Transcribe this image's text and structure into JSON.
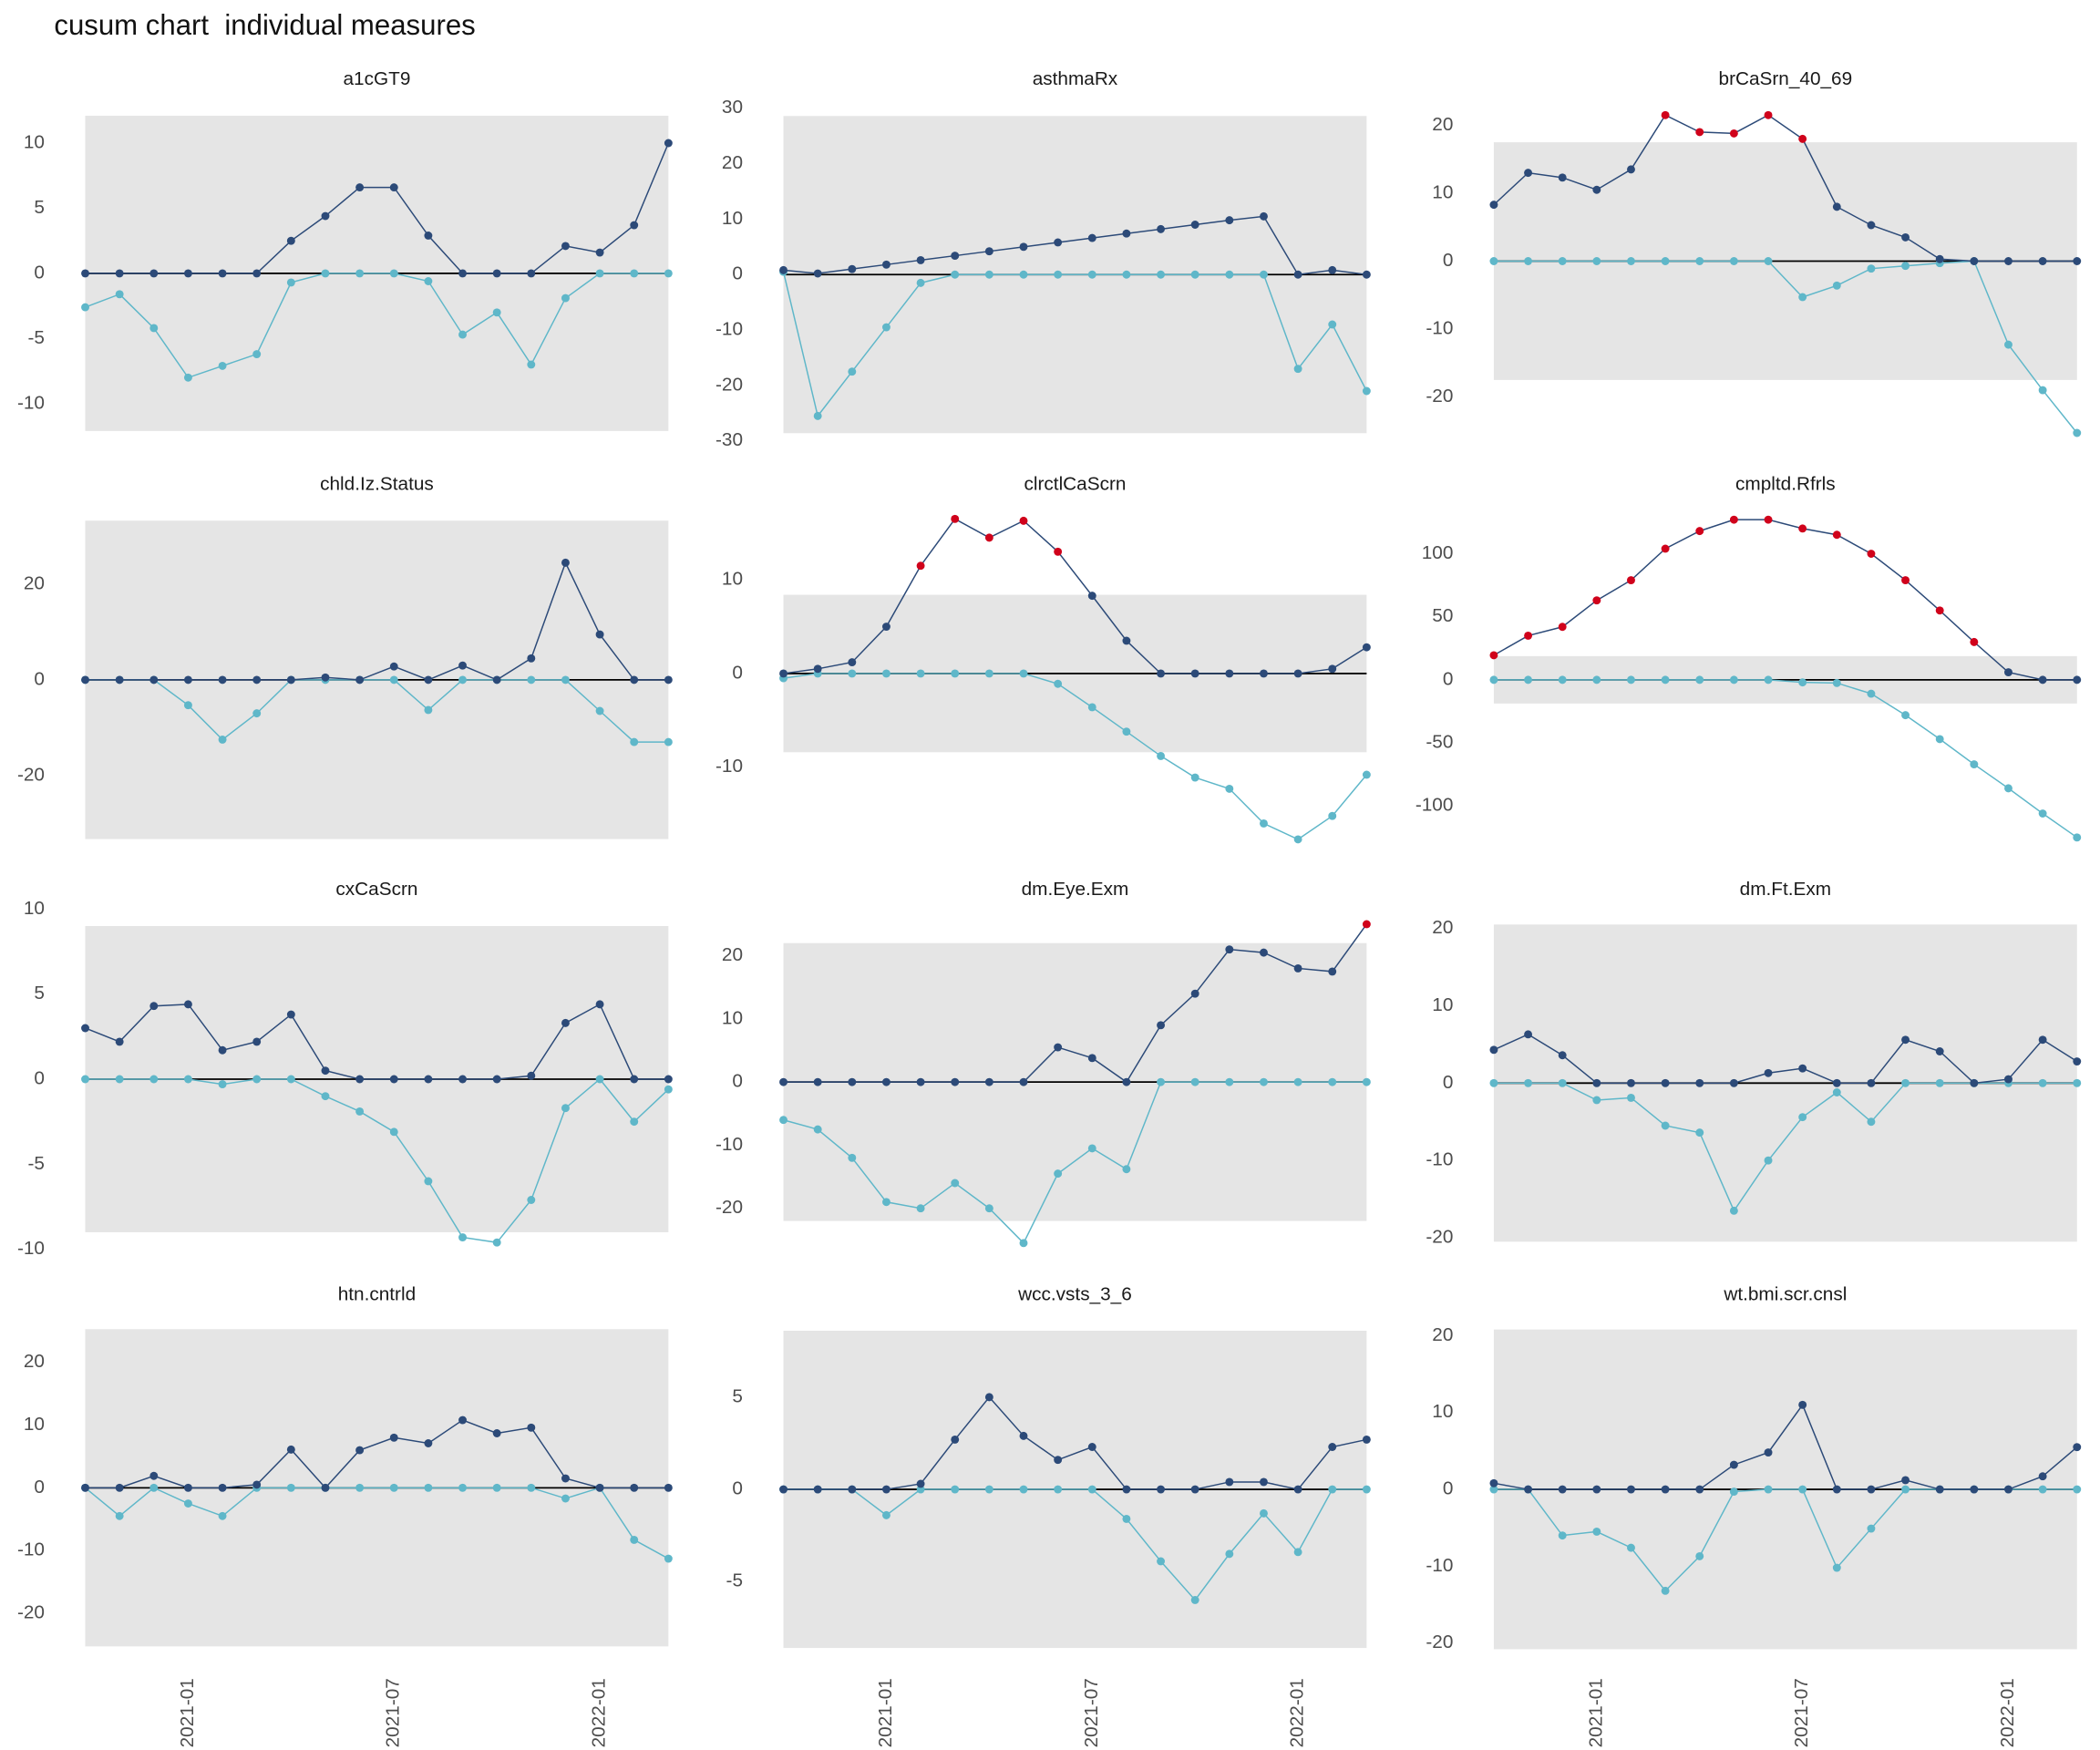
{
  "title": "cusum chart  individual measures",
  "highlight_color": "#d0021b",
  "chart_data": [
    {
      "type": "line",
      "title": "a1cGT9",
      "ylim": [
        -13.5,
        13.4
      ],
      "yticks": [
        -10,
        -5,
        0,
        5,
        10
      ],
      "control_limit": 12.1,
      "series": [
        {
          "color": "#2c4a78",
          "values": [
            0,
            0,
            0,
            0,
            0,
            0,
            2.5,
            4.4,
            6.6,
            6.6,
            2.9,
            0,
            0,
            0,
            2.1,
            1.6,
            3.7,
            10
          ]
        },
        {
          "color": "#5fb7c9",
          "values": [
            -2.6,
            -1.6,
            -4.2,
            -8,
            -7.1,
            -6.2,
            -0.7,
            0,
            0,
            0,
            -0.6,
            -4.7,
            -3,
            -7,
            -1.9,
            0,
            0,
            0
          ]
        }
      ]
    },
    {
      "type": "line",
      "title": "asthmaRx",
      "ylim": [
        -31.5,
        31.7
      ],
      "yticks": [
        -30,
        -20,
        -10,
        0,
        10,
        20,
        30
      ],
      "control_limit": 28.6,
      "series": [
        {
          "color": "#2c4a78",
          "values": [
            0.8,
            0.2,
            1,
            1.8,
            2.6,
            3.4,
            4.2,
            5,
            5.8,
            6.6,
            7.4,
            8.2,
            9,
            9.8,
            10.5,
            0,
            0.8,
            0
          ]
        },
        {
          "color": "#5fb7c9",
          "values": [
            0.5,
            -25.5,
            -17.5,
            -9.5,
            -1.5,
            0,
            0,
            0,
            0,
            0,
            0,
            0,
            0,
            0,
            0,
            -17,
            -9,
            -21
          ]
        }
      ]
    },
    {
      "type": "line",
      "title": "brCaSrn_40_69",
      "ylim": [
        -27.7,
        23.9
      ],
      "yticks": [
        -20,
        -10,
        0,
        10,
        20
      ],
      "control_limit": 17.5,
      "series": [
        {
          "color": "#2c4a78",
          "values": [
            8.3,
            13,
            12.3,
            10.5,
            13.5,
            21.5,
            19,
            18.8,
            21.5,
            18,
            8,
            5.3,
            3.5,
            0.3,
            0,
            0,
            0,
            0
          ]
        },
        {
          "color": "#5fb7c9",
          "values": [
            0,
            0,
            0,
            0,
            0,
            0,
            0,
            0,
            0,
            -5.3,
            -3.6,
            -1.1,
            -0.7,
            -0.3,
            0,
            -12.3,
            -19,
            -25.3
          ]
        }
      ]
    },
    {
      "type": "line",
      "title": "chld.Iz.Status",
      "ylim": [
        -36.5,
        36.8
      ],
      "yticks": [
        -20,
        0,
        20
      ],
      "control_limit": 33.3,
      "series": [
        {
          "color": "#2c4a78",
          "values": [
            0,
            0,
            0,
            0,
            0,
            0,
            0,
            0.5,
            0,
            2.8,
            0,
            3,
            0,
            4.5,
            24.5,
            9.5,
            0,
            0
          ]
        },
        {
          "color": "#5fb7c9",
          "values": [
            0,
            0,
            0,
            -5.3,
            -12.5,
            -7,
            0,
            0,
            0,
            0,
            -6.3,
            0,
            0,
            0,
            0,
            -6.5,
            -13,
            -13
          ]
        }
      ]
    },
    {
      "type": "line",
      "title": "clrctlCaScrn",
      "ylim": [
        -19.3,
        18.1
      ],
      "yticks": [
        -10,
        0,
        10
      ],
      "control_limit": 8.4,
      "series": [
        {
          "color": "#2c4a78",
          "values": [
            0,
            0.5,
            1.2,
            5,
            11.5,
            16.5,
            14.5,
            16.3,
            13,
            8.3,
            3.5,
            0,
            0,
            0,
            0,
            0,
            0.5,
            2.8
          ]
        },
        {
          "color": "#5fb7c9",
          "values": [
            -0.5,
            0,
            0,
            0,
            0,
            0,
            0,
            0,
            -1.1,
            -3.6,
            -6.2,
            -8.8,
            -11.1,
            -12.3,
            -16,
            -17.7,
            -15.2,
            -10.8
          ]
        }
      ]
    },
    {
      "type": "line",
      "title": "cmpltd.Rfrls",
      "ylim": [
        -138.4,
        139.5
      ],
      "yticks": [
        -100,
        -50,
        0,
        50,
        100
      ],
      "control_limit": 18.8,
      "series": [
        {
          "color": "#2c4a78",
          "values": [
            19.5,
            35,
            42,
            63,
            79,
            104,
            118,
            127,
            127,
            120,
            115,
            100,
            79,
            55,
            30,
            6,
            0,
            0
          ]
        },
        {
          "color": "#5fb7c9",
          "values": [
            0,
            0,
            0,
            0,
            0,
            0,
            0,
            0,
            0,
            -2,
            -2.5,
            -11,
            -28,
            -47,
            -67,
            -86,
            -106,
            -125
          ]
        }
      ]
    },
    {
      "type": "line",
      "title": "cxCaScrn",
      "ylim": [
        -10.6,
        10.0
      ],
      "yticks": [
        -10,
        -5,
        0,
        5,
        10
      ],
      "control_limit": 9,
      "series": [
        {
          "color": "#2c4a78",
          "values": [
            3,
            2.2,
            4.3,
            4.4,
            1.7,
            2.2,
            3.8,
            0.5,
            0,
            0,
            0,
            0,
            0,
            0.2,
            3.3,
            4.4,
            0,
            0
          ]
        },
        {
          "color": "#5fb7c9",
          "values": [
            0,
            0,
            0,
            0,
            -0.3,
            0,
            0,
            -1,
            -1.9,
            -3.1,
            -6,
            -9.3,
            -9.6,
            -7.1,
            -1.7,
            0,
            -2.5,
            -0.6
          ]
        }
      ]
    },
    {
      "type": "line",
      "title": "dm.Eye.Exm",
      "ylim": [
        -28.1,
        27.4
      ],
      "yticks": [
        -20,
        -10,
        0,
        10,
        20
      ],
      "control_limit": 22,
      "series": [
        {
          "color": "#2c4a78",
          "values": [
            0,
            0,
            0,
            0,
            0,
            0,
            0,
            0,
            5.5,
            3.8,
            0,
            9,
            14,
            21,
            20.5,
            18,
            17.5,
            25
          ]
        },
        {
          "color": "#5fb7c9",
          "values": [
            -6,
            -7.5,
            -12,
            -19,
            -20,
            -16,
            -20,
            -25.5,
            -14.5,
            -10.5,
            -13.8,
            0,
            0,
            0,
            0,
            0,
            0,
            0
          ]
        }
      ]
    },
    {
      "type": "line",
      "title": "dm.Ft.Exm",
      "ylim": [
        -22.8,
        22.5
      ],
      "yticks": [
        -20,
        -10,
        0,
        10,
        20
      ],
      "control_limit": 20.5,
      "series": [
        {
          "color": "#2c4a78",
          "values": [
            4.3,
            6.3,
            3.6,
            0,
            0,
            0,
            0,
            0,
            1.3,
            1.9,
            0,
            0,
            5.6,
            4.1,
            0,
            0.5,
            5.6,
            2.8
          ]
        },
        {
          "color": "#5fb7c9",
          "values": [
            0,
            0,
            0,
            -2.2,
            -1.9,
            -5.5,
            -6.4,
            -16.5,
            -10,
            -4.4,
            -1.2,
            -5,
            0,
            0,
            0,
            0,
            0,
            0
          ]
        }
      ]
    },
    {
      "type": "line",
      "title": "htn.cntrld",
      "ylim": [
        -28.2,
        27.7
      ],
      "yticks": [
        -20,
        -10,
        0,
        10,
        20
      ],
      "control_limit": 25.3,
      "categories": [
        null,
        null,
        null,
        "2021-01",
        null,
        null,
        null,
        null,
        null,
        "2021-07",
        null,
        null,
        null,
        null,
        null,
        "2022-01",
        null,
        null
      ],
      "series": [
        {
          "color": "#2c4a78",
          "values": [
            0,
            0,
            1.9,
            0,
            0,
            0.5,
            6.1,
            0,
            6,
            8,
            7.1,
            10.8,
            8.7,
            9.6,
            1.5,
            0,
            0,
            0
          ]
        },
        {
          "color": "#5fb7c9",
          "values": [
            0,
            -4.5,
            0,
            -2.5,
            -4.5,
            0,
            0,
            0,
            0,
            0,
            0,
            0,
            0,
            0,
            -1.7,
            0,
            -8.3,
            -11.3
          ]
        }
      ]
    },
    {
      "type": "line",
      "title": "wcc.vsts_3_6",
      "ylim": [
        -9.5,
        9.5
      ],
      "yticks": [
        -5,
        0,
        5
      ],
      "control_limit": 8.6,
      "categories": [
        null,
        null,
        null,
        "2021-01",
        null,
        null,
        null,
        null,
        null,
        "2021-07",
        null,
        null,
        null,
        null,
        null,
        "2022-01",
        null,
        null
      ],
      "series": [
        {
          "color": "#2c4a78",
          "values": [
            0,
            0,
            0,
            0,
            0.3,
            2.7,
            5,
            2.9,
            1.6,
            2.3,
            0,
            0,
            0,
            0.4,
            0.4,
            0,
            2.3,
            2.7
          ]
        },
        {
          "color": "#5fb7c9",
          "values": [
            0,
            0,
            0,
            -1.4,
            0,
            0,
            0,
            0,
            0,
            0,
            -1.6,
            -3.9,
            -6,
            -3.5,
            -1.3,
            -3.4,
            0,
            0
          ]
        }
      ]
    },
    {
      "type": "line",
      "title": "wt.bmi.scr.cnsl",
      "ylim": [
        -22.8,
        22.8
      ],
      "yticks": [
        -20,
        -10,
        0,
        10,
        20
      ],
      "control_limit": 20.8,
      "categories": [
        null,
        null,
        null,
        "2021-01",
        null,
        null,
        null,
        null,
        null,
        "2021-07",
        null,
        null,
        null,
        null,
        null,
        "2022-01",
        null,
        null
      ],
      "series": [
        {
          "color": "#2c4a78",
          "values": [
            0.8,
            0,
            0,
            0,
            0,
            0,
            0,
            3.2,
            4.8,
            11,
            0,
            0,
            1.2,
            0,
            0,
            0,
            1.7,
            5.5
          ]
        },
        {
          "color": "#5fb7c9",
          "values": [
            0,
            0,
            -6,
            -5.5,
            -7.6,
            -13.2,
            -8.7,
            -0.3,
            0,
            0,
            -10.2,
            -5.1,
            0,
            0,
            0,
            0,
            0,
            0
          ]
        }
      ]
    }
  ]
}
